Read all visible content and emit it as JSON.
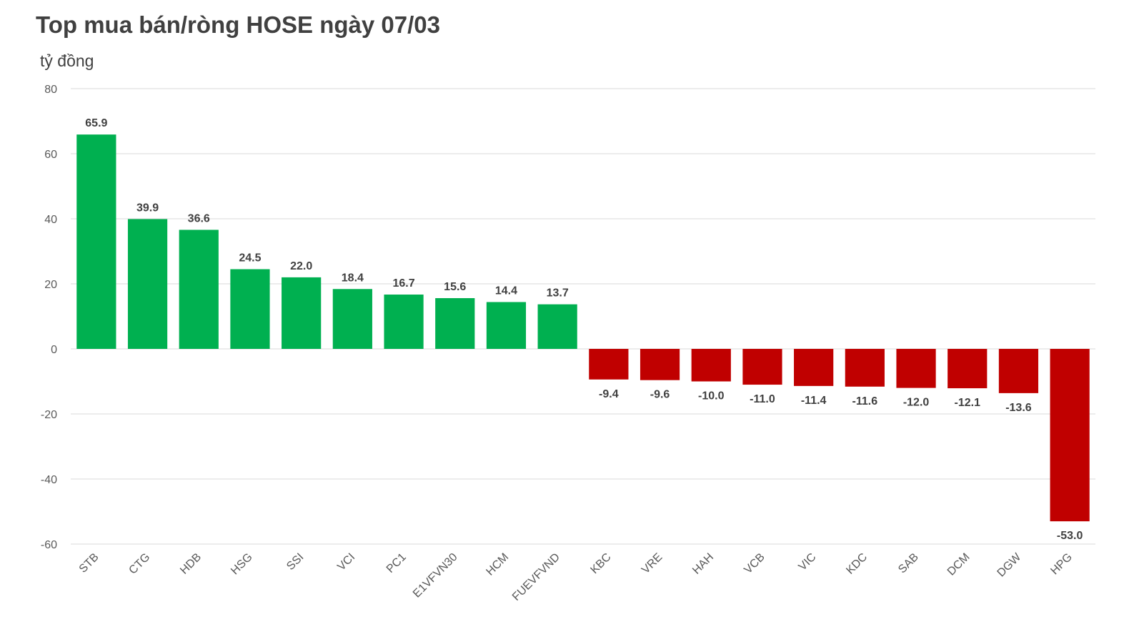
{
  "chart_data": {
    "type": "bar",
    "title": "Top mua bán/ròng HOSE ngày 07/03",
    "unit_label": "tỷ đồng",
    "categories": [
      "STB",
      "CTG",
      "HDB",
      "HSG",
      "SSI",
      "VCI",
      "PC1",
      "E1VFVN30",
      "HCM",
      "FUEVFVND",
      "KBC",
      "VRE",
      "HAH",
      "VCB",
      "VIC",
      "KDC",
      "SAB",
      "DCM",
      "DGW",
      "HPG"
    ],
    "values": [
      65.9,
      39.9,
      36.6,
      24.5,
      22.0,
      18.4,
      16.7,
      15.6,
      14.4,
      13.7,
      -9.4,
      -9.6,
      -10.0,
      -11.0,
      -11.4,
      -11.6,
      -12.0,
      -12.1,
      -13.6,
      -53.0
    ],
    "value_labels": [
      "65.9",
      "39.9",
      "36.6",
      "24.5",
      "22.0",
      "18.4",
      "16.7",
      "15.6",
      "14.4",
      "13.7",
      "-9.4",
      "-9.6",
      "-10.0",
      "-11.0",
      "-11.4",
      "-11.6",
      "-12.0",
      "-12.1",
      "-13.6",
      "-53.0"
    ],
    "ylim": [
      -60,
      80
    ],
    "yticks": [
      80,
      60,
      40,
      20,
      0,
      -20,
      -40,
      -60
    ],
    "grid": true,
    "legend": "none",
    "colors": {
      "positive": "#00b050",
      "negative": "#c00000",
      "grid": "#d9d9d9"
    }
  }
}
